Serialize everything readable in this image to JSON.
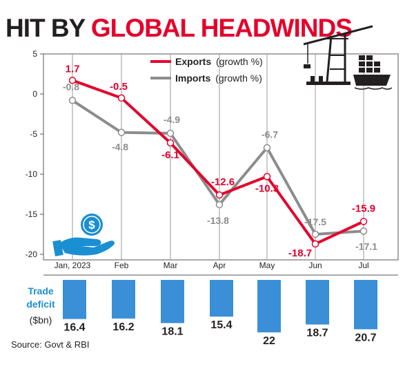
{
  "header": {
    "title_part1": "HIT BY ",
    "title_part2": "GLOBAL HEADWINDS"
  },
  "source": "Source: Govt & RBI",
  "colors": {
    "exports": "#e4002b",
    "imports": "#8c8c8c",
    "deficit_bar": "#3a8fd6",
    "title_dark": "#231f20",
    "title_accent": "#e4002b"
  },
  "icons": [
    "port-crane-ship-icon",
    "hand-holding-dollar-coin-icon"
  ],
  "chart_data": [
    {
      "type": "line",
      "categories": [
        "Jan, 2023",
        "Feb",
        "Mar",
        "Apr",
        "May",
        "Jun",
        "Jul"
      ],
      "series": [
        {
          "name": "Exports",
          "legend_suffix": "(growth %)",
          "values": [
            1.7,
            -0.5,
            -6.1,
            -12.6,
            -10.3,
            -18.7,
            -15.9
          ],
          "labels": [
            "1.7",
            "-0.5",
            "-6.1",
            "-12.6",
            "-10.3",
            "-18.7",
            "-15.9"
          ]
        },
        {
          "name": "Imports",
          "legend_suffix": "(growth %)",
          "values": [
            -0.8,
            -4.8,
            -4.9,
            -13.8,
            -6.7,
            -17.5,
            -17.1
          ],
          "labels": [
            "-0.8",
            "-4.8",
            "-4.9",
            "-13.8",
            "-6.7",
            "-17.5",
            "-17.1"
          ]
        }
      ],
      "ylim": [
        -20,
        5
      ],
      "yticks": [
        "5",
        "0",
        "-5",
        "-10",
        "-15",
        "-20"
      ],
      "grid": "vertical",
      "legend": "top-center"
    },
    {
      "type": "bar",
      "label_lines": [
        "Trade",
        "deficit"
      ],
      "unit": "($bn)",
      "categories": [
        "Jan, 2023",
        "Feb",
        "Mar",
        "Apr",
        "May",
        "Jun",
        "Jul"
      ],
      "values": [
        16.4,
        16.2,
        18.1,
        15.4,
        22,
        18.7,
        20.7
      ],
      "labels": [
        "16.4",
        "16.2",
        "18.1",
        "15.4",
        "22",
        "18.7",
        "20.7"
      ],
      "orientation": "hanging-down"
    }
  ]
}
